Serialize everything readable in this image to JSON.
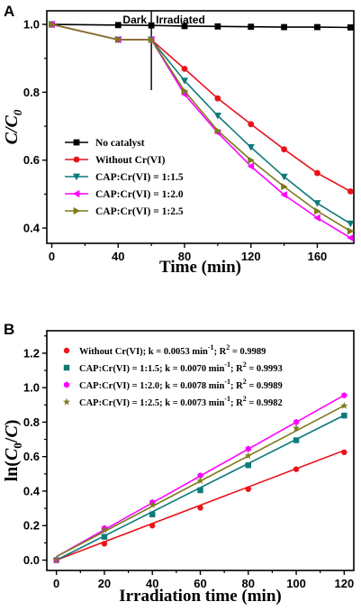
{
  "chart_data": [
    {
      "panel": "A",
      "type": "line",
      "xlabel": "Time (min)",
      "ylabel": "C/C",
      "ylabel_sub": "0",
      "xlim": [
        -3,
        182
      ],
      "ylim": [
        0.355,
        1.04
      ],
      "xticks": [
        0,
        40,
        80,
        120,
        160
      ],
      "yticks": [
        0.4,
        0.6,
        0.8,
        1.0
      ],
      "ytick_labels": [
        "0.4",
        "0.6",
        "0.8",
        "1.0"
      ],
      "annotations": {
        "dark": "Dark",
        "irradiated": "Irradiated",
        "divider_x": 60
      },
      "legend_position": "bottom-left",
      "series": [
        {
          "name": "No catalyst",
          "color": "#000000",
          "marker": "square",
          "x": [
            0,
            40,
            60,
            80,
            100,
            120,
            140,
            160,
            180
          ],
          "y": [
            1.0,
            0.998,
            0.997,
            0.995,
            0.994,
            0.993,
            0.992,
            0.992,
            0.991
          ]
        },
        {
          "name": "Without Cr(VI)",
          "color": "#e8141b",
          "marker": "circle",
          "x": [
            0,
            40,
            60,
            80,
            100,
            120,
            140,
            160,
            180
          ],
          "y": [
            1.0,
            0.955,
            0.955,
            0.869,
            0.782,
            0.706,
            0.632,
            0.562,
            0.508
          ]
        },
        {
          "name": "CAP:Cr(VI) = 1:1.5",
          "color": "#0e7a7a",
          "marker": "triangle-down",
          "x": [
            0,
            40,
            60,
            80,
            100,
            120,
            140,
            160,
            180
          ],
          "y": [
            1.0,
            0.955,
            0.955,
            0.834,
            0.731,
            0.638,
            0.551,
            0.473,
            0.413
          ]
        },
        {
          "name": "CAP:Cr(VI) = 1:2.0",
          "color": "#ff00ff",
          "marker": "triangle-left",
          "x": [
            0,
            40,
            60,
            80,
            100,
            120,
            140,
            160,
            180
          ],
          "y": [
            1.0,
            0.955,
            0.955,
            0.794,
            0.681,
            0.582,
            0.498,
            0.43,
            0.371
          ]
        },
        {
          "name": "CAP:Cr(VI) = 1:2.5",
          "color": "#7d7a1a",
          "marker": "triangle-right",
          "x": [
            0,
            40,
            60,
            80,
            100,
            120,
            140,
            160,
            180
          ],
          "y": [
            1.0,
            0.955,
            0.955,
            0.804,
            0.687,
            0.6,
            0.522,
            0.45,
            0.391
          ]
        }
      ]
    },
    {
      "panel": "B",
      "type": "scatter",
      "xlabel": "Irradiation time (min)",
      "ylabel_prefix": "ln(C",
      "ylabel_sub": "0",
      "ylabel_suffix": "/C)",
      "xlim": [
        -4,
        124
      ],
      "ylim": [
        -0.06,
        1.33
      ],
      "xticks": [
        0,
        20,
        40,
        60,
        80,
        100,
        120
      ],
      "yticks": [
        0.0,
        0.2,
        0.4,
        0.6,
        0.8,
        1.0,
        1.2
      ],
      "ytick_labels": [
        "0.0",
        "0.2",
        "0.4",
        "0.6",
        "0.8",
        "1.0",
        "1.2"
      ],
      "legend_position": "top-left",
      "series": [
        {
          "legend_main": "Without Cr(VI); k = 0.0053 min",
          "legend_sup": "-1",
          "legend_r": "; R",
          "legend_r_sup": "2",
          "legend_end": " = 0.9989",
          "color": "#e8141b",
          "marker": "circle",
          "fit": [
            0.0,
            0.0053
          ],
          "x": [
            0,
            20,
            40,
            60,
            80,
            100,
            120
          ],
          "y": [
            0.0,
            0.095,
            0.2,
            0.303,
            0.412,
            0.527,
            0.625
          ]
        },
        {
          "legend_main": "CAP:Cr(VI) = 1:1.5; k = 0.0070 min",
          "legend_sup": "-1",
          "legend_r": "; R",
          "legend_r_sup": "2",
          "legend_end": " = 0.9993",
          "color": "#0e7a7a",
          "marker": "square",
          "fit": [
            0.0,
            0.007
          ],
          "x": [
            0,
            20,
            40,
            60,
            80,
            100,
            120
          ],
          "y": [
            0.0,
            0.135,
            0.265,
            0.405,
            0.55,
            0.695,
            0.838
          ]
        },
        {
          "legend_main": "CAP:Cr(VI) = 1:2.0; k = 0.0078 min",
          "legend_sup": "-1",
          "legend_r": "; R",
          "legend_r_sup": "2",
          "legend_end": " = 0.9989",
          "color": "#ff00ff",
          "marker": "hexagon",
          "fit": [
            0.02,
            0.0078
          ],
          "x": [
            0,
            20,
            40,
            60,
            80,
            100,
            120
          ],
          "y": [
            0.0,
            0.185,
            0.335,
            0.49,
            0.645,
            0.8,
            0.955
          ]
        },
        {
          "legend_main": "CAP:Cr(VI) = 1:2.5; k = 0.0073 min",
          "legend_sup": "-1",
          "legend_r": "; R",
          "legend_r_sup": "2",
          "legend_end": " = 0.9982",
          "color": "#7d7a1a",
          "marker": "star",
          "fit": [
            0.02,
            0.0073
          ],
          "x": [
            0,
            20,
            40,
            60,
            80,
            100,
            120
          ],
          "y": [
            0.0,
            0.175,
            0.32,
            0.46,
            0.605,
            0.765,
            0.895
          ]
        }
      ]
    }
  ]
}
